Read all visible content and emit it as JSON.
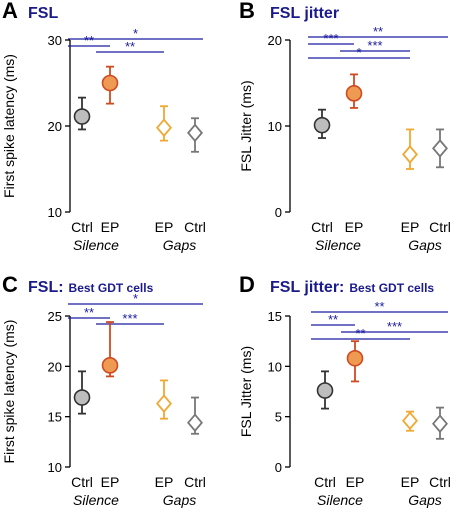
{
  "chart_data": [
    {
      "panel": "A",
      "type": "scatter",
      "title": "FSL",
      "title_sub": "",
      "ylabel": "First spike latency (ms)",
      "ylim": [
        10,
        30
      ],
      "yticks": [
        10,
        20,
        30
      ],
      "categories": [
        "Ctrl",
        "EP",
        "EP",
        "Ctrl"
      ],
      "groups": [
        "Silence",
        "Gaps"
      ],
      "points": [
        {
          "category": "Ctrl",
          "group": "Silence",
          "value": 21.1,
          "low": 19.6,
          "high": 23.3,
          "marker": "circle",
          "color": "#bdbdbd",
          "stroke": "#333333"
        },
        {
          "category": "EP",
          "group": "Silence",
          "value": 25.0,
          "low": 22.6,
          "high": 26.9,
          "marker": "circle",
          "color": "#ef9a52",
          "stroke": "#d04a20"
        },
        {
          "category": "EP",
          "group": "Gaps",
          "value": 19.8,
          "low": 18.3,
          "high": 22.3,
          "marker": "diamond",
          "color": "#ffffff",
          "stroke": "#f0a832"
        },
        {
          "category": "Ctrl",
          "group": "Gaps",
          "value": 19.2,
          "low": 17.0,
          "high": 20.9,
          "marker": "diamond",
          "color": "#ffffff",
          "stroke": "#777777"
        }
      ],
      "significance": [
        {
          "label": "*",
          "from": 0,
          "to": 3
        },
        {
          "label": "**",
          "from": 0,
          "to": 1
        },
        {
          "label": "**",
          "from": 1,
          "to": 2
        }
      ]
    },
    {
      "panel": "B",
      "type": "scatter",
      "title": "FSL jitter",
      "title_sub": "",
      "ylabel": "FSL Jitter (ms)",
      "ylim": [
        0,
        20
      ],
      "yticks": [
        0,
        10,
        20
      ],
      "categories": [
        "Ctrl",
        "EP",
        "EP",
        "Ctrl"
      ],
      "groups": [
        "Silence",
        "Gaps"
      ],
      "points": [
        {
          "category": "Ctrl",
          "group": "Silence",
          "value": 10.1,
          "low": 8.6,
          "high": 11.9,
          "marker": "circle",
          "color": "#bdbdbd",
          "stroke": "#333333"
        },
        {
          "category": "EP",
          "group": "Silence",
          "value": 13.8,
          "low": 12.1,
          "high": 16.0,
          "marker": "circle",
          "color": "#ef9a52",
          "stroke": "#d04a20"
        },
        {
          "category": "EP",
          "group": "Gaps",
          "value": 6.7,
          "low": 5.0,
          "high": 9.6,
          "marker": "diamond",
          "color": "#ffffff",
          "stroke": "#f0a832"
        },
        {
          "category": "Ctrl",
          "group": "Gaps",
          "value": 7.4,
          "low": 5.2,
          "high": 9.6,
          "marker": "diamond",
          "color": "#ffffff",
          "stroke": "#777777"
        }
      ],
      "significance": [
        {
          "label": "**",
          "from": 0,
          "to": 3
        },
        {
          "label": "***",
          "from": 0,
          "to": 1
        },
        {
          "label": "***",
          "from": 1,
          "to": 2
        },
        {
          "label": "*",
          "from": 0,
          "to": 2
        }
      ]
    },
    {
      "panel": "C",
      "type": "scatter",
      "title": "FSL:",
      "title_sub": "Best GDT cells",
      "ylabel": "First spike latency (ms)",
      "ylim": [
        10,
        25
      ],
      "yticks": [
        10,
        15,
        20,
        25
      ],
      "categories": [
        "Ctrl",
        "EP",
        "EP",
        "Ctrl"
      ],
      "groups": [
        "Silence",
        "Gaps"
      ],
      "points": [
        {
          "category": "Ctrl",
          "group": "Silence",
          "value": 16.9,
          "low": 15.3,
          "high": 19.5,
          "marker": "circle",
          "color": "#bdbdbd",
          "stroke": "#333333"
        },
        {
          "category": "EP",
          "group": "Silence",
          "value": 20.1,
          "low": 19.0,
          "high": 24.4,
          "marker": "circle",
          "color": "#ef9a52",
          "stroke": "#d04a20"
        },
        {
          "category": "EP",
          "group": "Gaps",
          "value": 16.3,
          "low": 14.8,
          "high": 18.6,
          "marker": "diamond",
          "color": "#ffffff",
          "stroke": "#f0a832"
        },
        {
          "category": "Ctrl",
          "group": "Gaps",
          "value": 14.4,
          "low": 13.3,
          "high": 16.9,
          "marker": "diamond",
          "color": "#ffffff",
          "stroke": "#777777"
        }
      ],
      "significance": [
        {
          "label": "*",
          "from": 0,
          "to": 3
        },
        {
          "label": "**",
          "from": 0,
          "to": 1
        },
        {
          "label": "***",
          "from": 1,
          "to": 2
        }
      ]
    },
    {
      "panel": "D",
      "type": "scatter",
      "title": "FSL jitter:",
      "title_sub": "Best GDT cells",
      "ylabel": "FSL Jitter (ms)",
      "ylim": [
        0,
        15
      ],
      "yticks": [
        0,
        5,
        10,
        15
      ],
      "categories": [
        "Ctrl",
        "EP",
        "EP",
        "Ctrl"
      ],
      "groups": [
        "Silence",
        "Gaps"
      ],
      "points": [
        {
          "category": "Ctrl",
          "group": "Silence",
          "value": 7.6,
          "low": 5.8,
          "high": 9.5,
          "marker": "circle",
          "color": "#bdbdbd",
          "stroke": "#333333"
        },
        {
          "category": "EP",
          "group": "Silence",
          "value": 10.8,
          "low": 8.5,
          "high": 12.5,
          "marker": "circle",
          "color": "#ef9a52",
          "stroke": "#d04a20"
        },
        {
          "category": "EP",
          "group": "Gaps",
          "value": 4.6,
          "low": 3.6,
          "high": 5.5,
          "marker": "diamond",
          "color": "#ffffff",
          "stroke": "#f0a832"
        },
        {
          "category": "Ctrl",
          "group": "Gaps",
          "value": 4.3,
          "low": 2.8,
          "high": 5.9,
          "marker": "diamond",
          "color": "#ffffff",
          "stroke": "#777777"
        }
      ],
      "significance": [
        {
          "label": "**",
          "from": 0,
          "to": 3
        },
        {
          "label": "**",
          "from": 0,
          "to": 1
        },
        {
          "label": "***",
          "from": 1,
          "to": 3
        },
        {
          "label": "**",
          "from": 0,
          "to": 2
        }
      ]
    }
  ],
  "colors": {
    "title": "#1a1a8c",
    "significance": "#1a1aa0",
    "axis": "#000000"
  }
}
